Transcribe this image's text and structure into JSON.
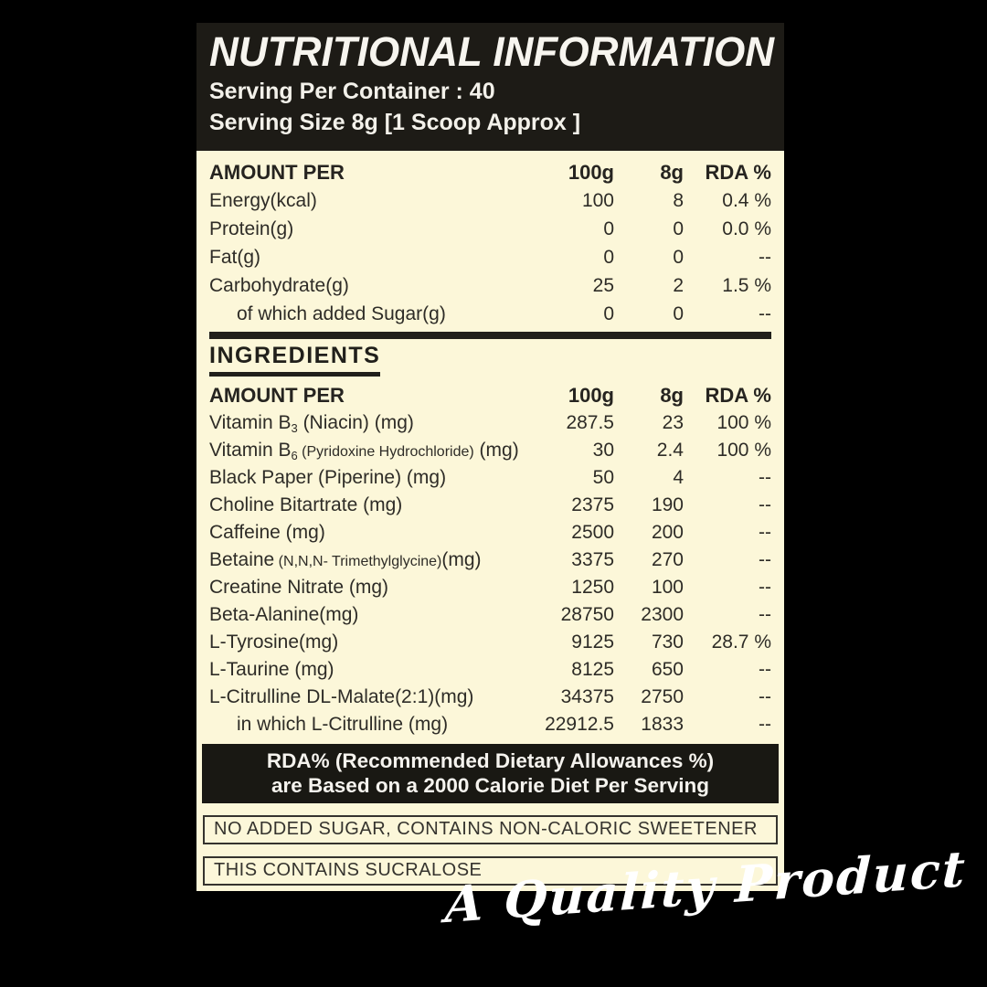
{
  "colors": {
    "page_background": "#000000",
    "panel_background": "#fcf7d9",
    "header_background": "#1d1b16",
    "banner_background": "#191813",
    "dark_text": "#2e2c27",
    "light_text": "#f5f3ee"
  },
  "header": {
    "title": "NUTRITIONAL INFORMATION",
    "serving_per_container": "Serving Per Container : 40",
    "serving_size": "Serving Size 8g [1 Scoop Approx ]"
  },
  "nutrition_table": {
    "header": {
      "label": "AMOUNT PER",
      "col_100g": "100g",
      "col_8g": "8g",
      "col_rda": "RDA  %"
    },
    "rows": [
      {
        "label": "Energy(kcal)",
        "per_100g": "100",
        "per_8g": "8",
        "rda": "0.4 %"
      },
      {
        "label": "Protein(g)",
        "per_100g": "0",
        "per_8g": "0",
        "rda": "0.0 %"
      },
      {
        "label": "Fat(g)",
        "per_100g": "0",
        "per_8g": "0",
        "rda": "--"
      },
      {
        "label": "Carbohydrate(g)",
        "per_100g": "25",
        "per_8g": "2",
        "rda": "1.5 %"
      },
      {
        "label": "of which added Sugar(g)",
        "per_100g": "0",
        "per_8g": "0",
        "rda": "--"
      }
    ]
  },
  "ingredients": {
    "heading": "INGREDIENTS",
    "header": {
      "label": "AMOUNT PER",
      "col_100g": "100g",
      "col_8g": "8g",
      "col_rda": "RDA %"
    },
    "rows": [
      {
        "pre": "Vitamin B",
        "sub": "3",
        "small": " (Niacin)",
        "post": " (mg)",
        "per_100g": "287.5",
        "per_8g": "23",
        "rda": "100 %"
      },
      {
        "pre": "Vitamin B",
        "sub": "6",
        "small": " (Pyridoxine Hydrochloride)",
        "post": " (mg)",
        "per_100g": "30",
        "per_8g": "2.4",
        "rda": "100 %"
      },
      {
        "pre": "Black Paper (Piperine) (mg)",
        "sub": "",
        "small": "",
        "post": "",
        "per_100g": "50",
        "per_8g": "4",
        "rda": "--"
      },
      {
        "pre": "Choline Bitartrate (mg)",
        "sub": "",
        "small": "",
        "post": "",
        "per_100g": "2375",
        "per_8g": "190",
        "rda": "--"
      },
      {
        "pre": "Caffeine (mg)",
        "sub": "",
        "small": "",
        "post": "",
        "per_100g": "2500",
        "per_8g": "200",
        "rda": "--"
      },
      {
        "pre": "Betaine",
        "sub": "",
        "small": " (N,N,N- Trimethylglycine)",
        "post": "(mg)",
        "per_100g": "3375",
        "per_8g": "270",
        "rda": "--"
      },
      {
        "pre": "Creatine Nitrate (mg)",
        "sub": "",
        "small": "",
        "post": "",
        "per_100g": "1250",
        "per_8g": "100",
        "rda": "--"
      },
      {
        "pre": "Beta-Alanine(mg)",
        "sub": "",
        "small": "",
        "post": "",
        "per_100g": "28750",
        "per_8g": "2300",
        "rda": "--"
      },
      {
        "pre": "L-Tyrosine(mg)",
        "sub": "",
        "small": "",
        "post": "",
        "per_100g": "9125",
        "per_8g": "730",
        "rda": "28.7 %"
      },
      {
        "pre": "L-Taurine (mg)",
        "sub": "",
        "small": "",
        "post": "",
        "per_100g": "8125",
        "per_8g": "650",
        "rda": "--"
      },
      {
        "pre": "L-Citrulline DL-Malate(2:1)(mg)",
        "sub": "",
        "small": "",
        "post": "",
        "per_100g": "34375",
        "per_8g": "2750",
        "rda": "--"
      },
      {
        "pre": "in which L-Citrulline (mg)",
        "sub": "",
        "small": "",
        "post": "",
        "per_100g": "22912.5",
        "per_8g": "1833",
        "rda": "--"
      }
    ]
  },
  "rda_banner": {
    "line1": "RDA% (Recommended Dietary Allowances %)",
    "line2": "are Based on a 2000 Calorie Diet Per Serving"
  },
  "notes": [
    "NO ADDED SUGAR, CONTAINS NON-CALORIC SWEETENER",
    "THIS CONTAINS SUCRALOSE"
  ],
  "signature": "A Quality Product"
}
